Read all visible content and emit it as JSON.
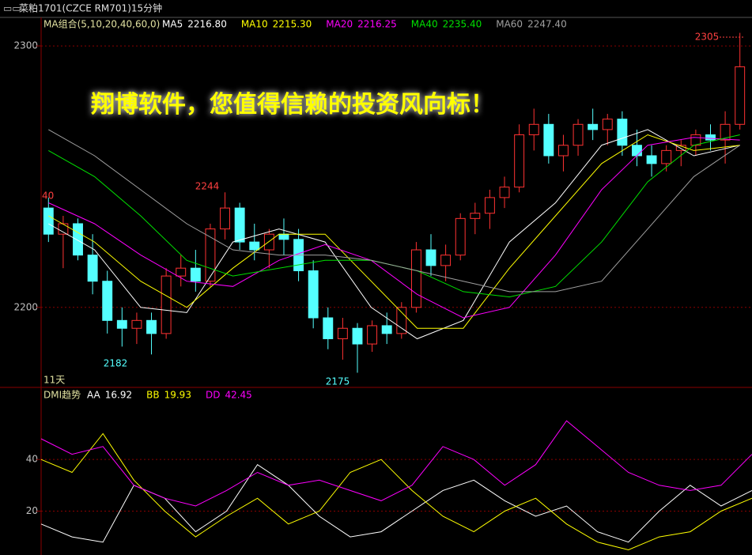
{
  "header": {
    "title": "菜粕1701(CZCE RM701)15分钟",
    "banner": "翔博软件，您值得信赖的投资风向标！",
    "days": "11天"
  },
  "chart_data": [
    {
      "type": "candlestick",
      "title": "MA组合(5,10,20,40,60,0)",
      "open": [
        2238,
        2228,
        2232,
        2220,
        2210,
        2195,
        2192,
        2195,
        2190,
        2212,
        2215,
        2210,
        2230,
        2238,
        2225,
        2222,
        2228,
        2226,
        2214,
        2196,
        2188,
        2192,
        2186,
        2193,
        2190,
        2200,
        2222,
        2216,
        2220,
        2234,
        2236,
        2242,
        2246,
        2266,
        2270,
        2258,
        2262,
        2270,
        2268,
        2272,
        2262,
        2258,
        2255,
        2260,
        2262,
        2266,
        2264,
        2270
      ],
      "high": [
        2242,
        2235,
        2234,
        2228,
        2214,
        2200,
        2198,
        2198,
        2215,
        2220,
        2222,
        2232,
        2244,
        2240,
        2232,
        2230,
        2234,
        2230,
        2218,
        2200,
        2196,
        2194,
        2195,
        2198,
        2202,
        2225,
        2228,
        2224,
        2236,
        2240,
        2245,
        2250,
        2270,
        2276,
        2274,
        2266,
        2272,
        2276,
        2274,
        2275,
        2268,
        2262,
        2262,
        2264,
        2268,
        2270,
        2275,
        2305
      ],
      "low": [
        2225,
        2215,
        2218,
        2205,
        2190,
        2185,
        2186,
        2182,
        2188,
        2208,
        2206,
        2208,
        2226,
        2222,
        2218,
        2215,
        2220,
        2210,
        2192,
        2184,
        2180,
        2175,
        2183,
        2186,
        2188,
        2198,
        2212,
        2210,
        2218,
        2228,
        2230,
        2238,
        2244,
        2260,
        2255,
        2252,
        2258,
        2264,
        2262,
        2258,
        2254,
        2250,
        2252,
        2254,
        2258,
        2260,
        2255,
        2268
      ],
      "close": [
        2228,
        2232,
        2220,
        2210,
        2195,
        2192,
        2195,
        2190,
        2212,
        2215,
        2210,
        2230,
        2238,
        2225,
        2222,
        2228,
        2226,
        2214,
        2196,
        2188,
        2192,
        2186,
        2193,
        2190,
        2200,
        2222,
        2216,
        2220,
        2234,
        2236,
        2242,
        2246,
        2266,
        2270,
        2258,
        2262,
        2270,
        2268,
        2272,
        2262,
        2258,
        2255,
        2260,
        2262,
        2266,
        2264,
        2270,
        2292
      ],
      "up_color": "#ff3232",
      "down_color": "#54ffff",
      "series": [
        {
          "name": "MA5",
          "legend_value": "2216.80",
          "color": "#ffffff",
          "values": [
            2232,
            2222,
            2200,
            2198,
            2225,
            2230,
            2225,
            2200,
            2188,
            2195,
            2225,
            2240,
            2262,
            2268,
            2258,
            2262
          ]
        },
        {
          "name": "MA10",
          "legend_value": "2215.30",
          "color": "#ffff00",
          "values": [
            2235,
            2225,
            2210,
            2200,
            2215,
            2228,
            2228,
            2210,
            2192,
            2192,
            2215,
            2235,
            2255,
            2266,
            2260,
            2262
          ]
        },
        {
          "name": "MA20",
          "legend_value": "2216.25",
          "color": "#ff00ff",
          "values": [
            2240,
            2232,
            2220,
            2210,
            2208,
            2218,
            2224,
            2218,
            2205,
            2196,
            2200,
            2220,
            2245,
            2262,
            2265,
            2264
          ]
        },
        {
          "name": "MA40",
          "legend_value": "2235.40",
          "color": "#00e000",
          "values": [
            2260,
            2250,
            2235,
            2218,
            2212,
            2215,
            2218,
            2218,
            2214,
            2206,
            2204,
            2208,
            2225,
            2248,
            2262,
            2266
          ]
        },
        {
          "name": "MA60",
          "legend_value": "2247.40",
          "color": "#a0a0a0",
          "values": [
            2268,
            2258,
            2245,
            2232,
            2222,
            2220,
            2220,
            2218,
            2214,
            2210,
            2206,
            2206,
            2210,
            2230,
            2250,
            2262
          ]
        }
      ],
      "annotations": [
        "2244",
        "2182",
        "2175",
        "2305",
        "40"
      ],
      "ylim": [
        2170,
        2310
      ],
      "yticks": [
        2200,
        2300
      ],
      "grid": true
    },
    {
      "type": "line",
      "title": "DMI趋势",
      "series": [
        {
          "name": "AA",
          "legend_value": "16.92",
          "color": "#ffffff",
          "values": [
            15,
            10,
            8,
            30,
            25,
            12,
            20,
            38,
            30,
            18,
            10,
            12,
            20,
            28,
            32,
            24,
            18,
            22,
            12,
            8,
            20,
            30,
            22,
            28
          ]
        },
        {
          "name": "BB",
          "legend_value": "19.93",
          "color": "#ffff00",
          "values": [
            40,
            35,
            50,
            32,
            20,
            10,
            18,
            25,
            15,
            20,
            35,
            40,
            28,
            18,
            12,
            20,
            25,
            15,
            8,
            5,
            10,
            12,
            20,
            25
          ]
        },
        {
          "name": "DD",
          "legend_value": "42.45",
          "color": "#ff00ff",
          "values": [
            48,
            42,
            45,
            30,
            25,
            22,
            28,
            35,
            30,
            32,
            28,
            24,
            30,
            45,
            40,
            30,
            38,
            55,
            45,
            35,
            30,
            28,
            30,
            42
          ]
        }
      ],
      "ylim": [
        3,
        67
      ],
      "yticks": [
        20,
        40
      ],
      "grid": true
    }
  ]
}
